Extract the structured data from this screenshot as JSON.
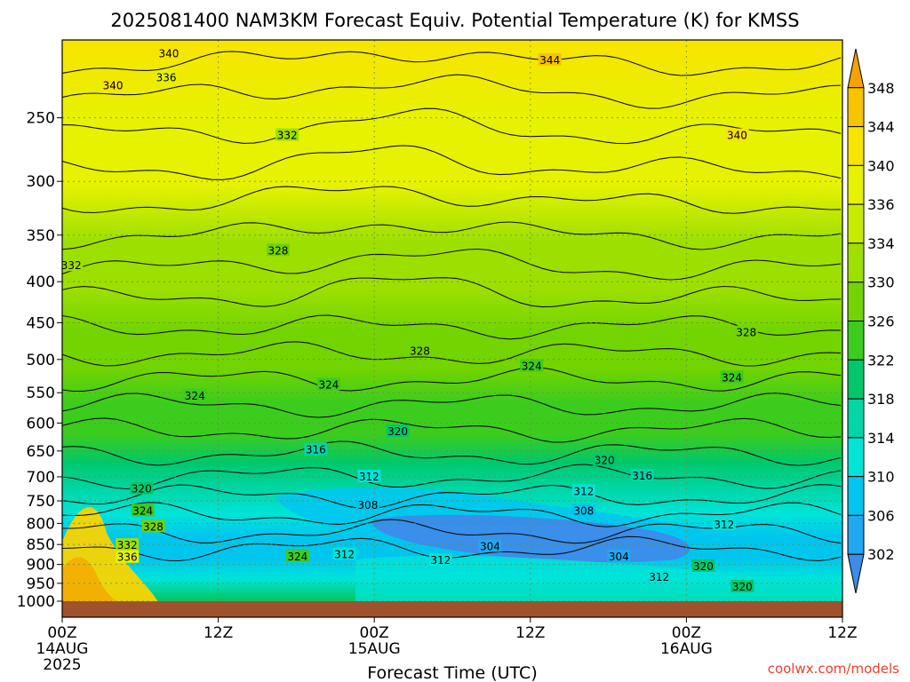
{
  "chart_data": {
    "type": "heatmap",
    "title": "2025081400 NAM3KM Forecast Equiv. Potential Temperature (K) for KMSS",
    "xlabel": "Forecast Time (UTC)",
    "ylabel": "",
    "x_ticks": [
      {
        "hour": 0,
        "lines": [
          "00Z",
          "14AUG",
          "2025"
        ]
      },
      {
        "hour": 12,
        "lines": [
          "12Z"
        ]
      },
      {
        "hour": 24,
        "lines": [
          "00Z",
          "15AUG"
        ]
      },
      {
        "hour": 36,
        "lines": [
          "12Z"
        ]
      },
      {
        "hour": 48,
        "lines": [
          "00Z",
          "16AUG"
        ]
      },
      {
        "hour": 60,
        "lines": [
          "12Z"
        ]
      }
    ],
    "xlim": [
      0,
      60
    ],
    "y_ticks": [
      250,
      300,
      350,
      400,
      450,
      500,
      550,
      600,
      650,
      700,
      750,
      800,
      850,
      900,
      950,
      1000
    ],
    "ylim": [
      1000,
      200
    ],
    "y_scale": "log-pressure",
    "grid": true,
    "colorbar": {
      "labels": [
        348,
        344,
        340,
        336,
        334,
        330,
        326,
        322,
        318,
        314,
        310,
        306,
        302
      ],
      "colors": [
        "#f5a300",
        "#f7c400",
        "#f8e400",
        "#e6f200",
        "#c8ec00",
        "#9de000",
        "#72d400",
        "#3ccc1e",
        "#00c86a",
        "#00d6a6",
        "#00e4d8",
        "#00c6ee",
        "#22a8f0",
        "#3c8ce8"
      ]
    },
    "field_profile_K": {
      "pressure_hPa": [
        200,
        250,
        300,
        350,
        400,
        450,
        500,
        550,
        600,
        650,
        700,
        750,
        800,
        850,
        900,
        950,
        1000
      ],
      "theta_e_K": [
        343,
        339,
        336,
        333,
        331,
        329,
        326,
        324,
        322,
        319,
        316,
        312,
        309,
        306,
        312,
        318,
        322
      ]
    },
    "contour_labels": [
      {
        "t": 8.2,
        "p": 208,
        "v": "340"
      },
      {
        "t": 8.0,
        "p": 223,
        "v": "336"
      },
      {
        "t": 37.5,
        "p": 212,
        "v": "344"
      },
      {
        "t": 3.9,
        "p": 228,
        "v": "340"
      },
      {
        "t": 17.3,
        "p": 263,
        "v": "332"
      },
      {
        "t": 51.9,
        "p": 263,
        "v": "340"
      },
      {
        "t": 16.6,
        "p": 366,
        "v": "328"
      },
      {
        "t": 0.7,
        "p": 382,
        "v": "332"
      },
      {
        "t": 52.6,
        "p": 463,
        "v": "328"
      },
      {
        "t": 27.5,
        "p": 488,
        "v": "328"
      },
      {
        "t": 10.2,
        "p": 555,
        "v": "324"
      },
      {
        "t": 20.5,
        "p": 538,
        "v": "324"
      },
      {
        "t": 36.1,
        "p": 510,
        "v": "324"
      },
      {
        "t": 51.5,
        "p": 527,
        "v": "324"
      },
      {
        "t": 25.8,
        "p": 615,
        "v": "320"
      },
      {
        "t": 41.7,
        "p": 668,
        "v": "320"
      },
      {
        "t": 19.5,
        "p": 648,
        "v": "316"
      },
      {
        "t": 44.6,
        "p": 698,
        "v": "316"
      },
      {
        "t": 23.6,
        "p": 700,
        "v": "312"
      },
      {
        "t": 40.1,
        "p": 730,
        "v": "312"
      },
      {
        "t": 23.5,
        "p": 760,
        "v": "308"
      },
      {
        "t": 40.1,
        "p": 772,
        "v": "308"
      },
      {
        "t": 32.9,
        "p": 855,
        "v": "304"
      },
      {
        "t": 42.8,
        "p": 880,
        "v": "304"
      },
      {
        "t": 6.1,
        "p": 725,
        "v": "320"
      },
      {
        "t": 6.2,
        "p": 772,
        "v": "324"
      },
      {
        "t": 7.0,
        "p": 808,
        "v": "328"
      },
      {
        "t": 5.0,
        "p": 852,
        "v": "332"
      },
      {
        "t": 5.0,
        "p": 882,
        "v": "336"
      },
      {
        "t": 18.1,
        "p": 880,
        "v": "324"
      },
      {
        "t": 21.7,
        "p": 875,
        "v": "312"
      },
      {
        "t": 29.1,
        "p": 890,
        "v": "312"
      },
      {
        "t": 45.9,
        "p": 933,
        "v": "312"
      },
      {
        "t": 50.9,
        "p": 803,
        "v": "312"
      },
      {
        "t": 49.3,
        "p": 905,
        "v": "320"
      },
      {
        "t": 52.3,
        "p": 960,
        "v": "320"
      }
    ]
  },
  "credit": "coolwx.com/models"
}
